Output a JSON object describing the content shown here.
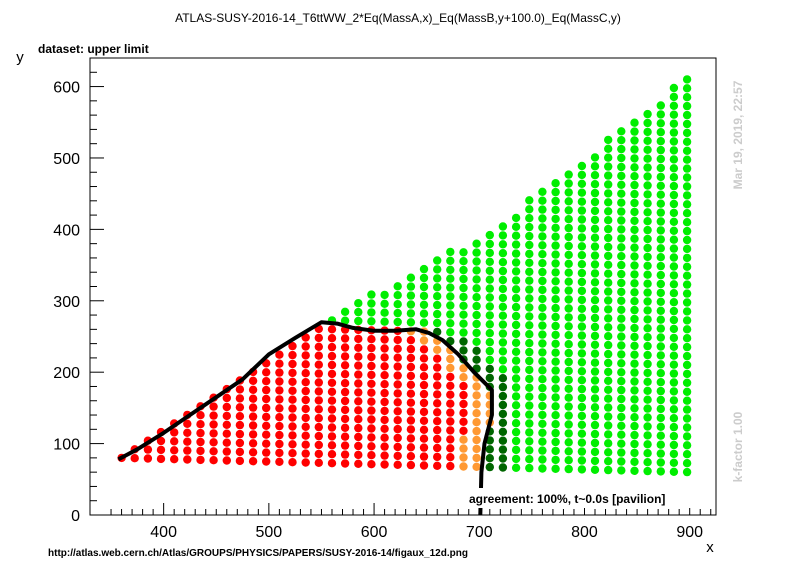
{
  "title": "ATLAS-SUSY-2016-14_T6ttWW_2*Eq(MassA,x)_Eq(MassB,y+100.0)_Eq(MassC,y)",
  "dataset_label": "dataset: upper limit",
  "agreement_label": "agreement: 100%, t~0.0s [pavilion]",
  "timestamp": "Mar 19, 2019, 22:57",
  "kfactor": "k-factor 1.00",
  "url": "http://atlas.web.cern.ch/Atlas/GROUPS/PHYSICS/PAPERS/SUSY-2016-14/figaux_12d.png",
  "colors": {
    "excluded": "#ff0000",
    "excluded_borderline": "#ff9933",
    "allowed_borderline": "#006600",
    "allowed": "#00ee00",
    "contour": "#000000"
  },
  "chart_data": {
    "type": "scatter",
    "xlabel": "x",
    "ylabel": "y",
    "xlim": [
      330,
      925
    ],
    "ylim": [
      0,
      640
    ],
    "xticks": [
      400,
      500,
      600,
      700,
      800,
      900
    ],
    "yticks": [
      0,
      100,
      200,
      300,
      400,
      500,
      600
    ],
    "grid": false,
    "region": {
      "x_spacing": 12.5,
      "y_spacing": 12.5,
      "lower_bound": [
        [
          360,
          80
        ],
        [
          900,
          60
        ]
      ],
      "upper_bound": [
        [
          360,
          80
        ],
        [
          555,
          275
        ],
        [
          710,
          400
        ],
        [
          900,
          615
        ]
      ]
    },
    "categories": [
      {
        "name": "excluded",
        "color_key": "excluded"
      },
      {
        "name": "excluded (borderline)",
        "color_key": "excluded_borderline"
      },
      {
        "name": "allowed (borderline)",
        "color_key": "allowed_borderline"
      },
      {
        "name": "allowed",
        "color_key": "allowed"
      }
    ],
    "contour": [
      [
        357,
        78
      ],
      [
        375,
        92
      ],
      [
        400,
        115
      ],
      [
        425,
        140
      ],
      [
        450,
        165
      ],
      [
        475,
        190
      ],
      [
        500,
        225
      ],
      [
        525,
        248
      ],
      [
        550,
        270
      ],
      [
        565,
        268
      ],
      [
        580,
        262
      ],
      [
        600,
        258
      ],
      [
        620,
        258
      ],
      [
        640,
        260
      ],
      [
        652,
        255
      ],
      [
        665,
        245
      ],
      [
        680,
        225
      ],
      [
        695,
        200
      ],
      [
        712,
        175
      ],
      [
        712,
        140
      ],
      [
        705,
        100
      ],
      [
        702,
        60
      ],
      [
        701,
        0
      ]
    ]
  }
}
